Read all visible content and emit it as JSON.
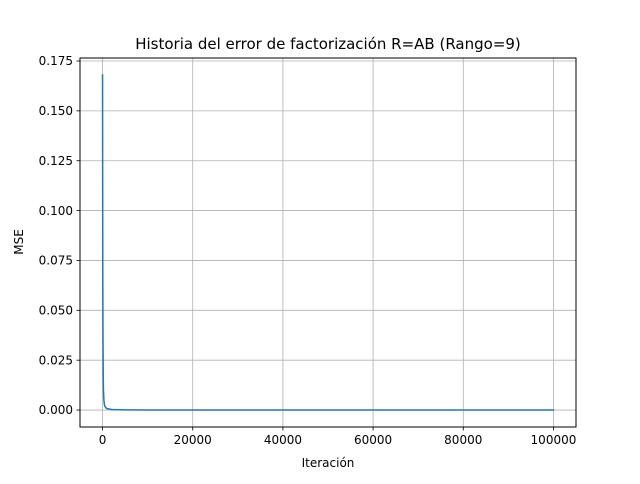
{
  "chart_data": {
    "type": "line",
    "title": "Historia del error de factorización R=AB (Rango=9)",
    "xlabel": "Iteración",
    "ylabel": "MSE",
    "xlim": [
      -5000,
      105000
    ],
    "ylim": [
      -0.0085,
      0.1765
    ],
    "xticks": [
      0,
      20000,
      40000,
      60000,
      80000,
      100000
    ],
    "xtick_labels": [
      "0",
      "20000",
      "40000",
      "60000",
      "80000",
      "100000"
    ],
    "yticks": [
      0.0,
      0.025,
      0.05,
      0.075,
      0.1,
      0.125,
      0.15,
      0.175
    ],
    "ytick_labels": [
      "0.000",
      "0.025",
      "0.050",
      "0.075",
      "0.100",
      "0.125",
      "0.150",
      "0.175"
    ],
    "grid": true,
    "series_color": "#1f77b4",
    "series": [
      {
        "x": [
          0,
          20,
          50,
          100,
          150,
          200,
          300,
          400,
          500,
          700,
          1000,
          2000,
          5000,
          10000,
          20000,
          40000,
          60000,
          80000,
          100000
        ],
        "values": [
          0.168,
          0.12,
          0.07,
          0.035,
          0.018,
          0.01,
          0.005,
          0.003,
          0.002,
          0.0012,
          0.0007,
          0.0003,
          0.0001,
          5e-05,
          3e-05,
          2e-05,
          1.5e-05,
          1e-05,
          1e-05
        ]
      }
    ]
  }
}
